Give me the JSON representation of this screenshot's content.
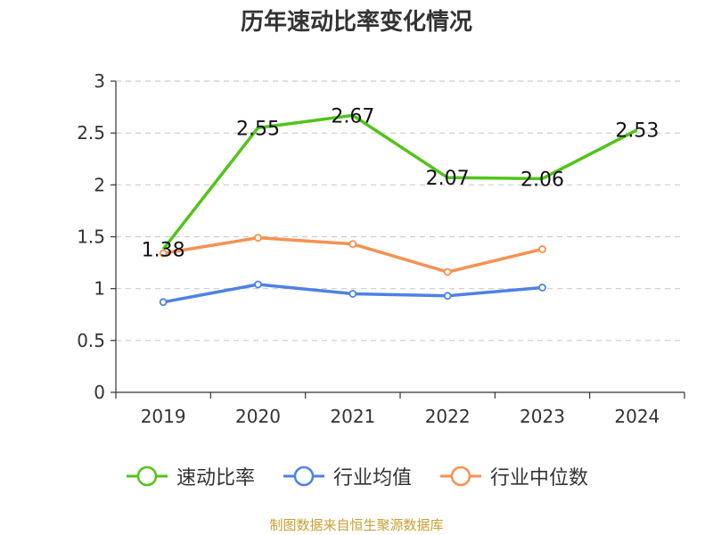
{
  "chart_data": {
    "type": "line",
    "title": "历年速动比率变化情况",
    "categories": [
      "2019",
      "2020",
      "2021",
      "2022",
      "2023",
      "2024"
    ],
    "ylim": [
      0,
      3
    ],
    "yticks": [
      0,
      0.5,
      1,
      1.5,
      2,
      2.5,
      3
    ],
    "grid": true,
    "legend_position": "bottom",
    "series": [
      {
        "name": "速动比率",
        "color": "#52c41a",
        "values": [
          1.38,
          2.55,
          2.67,
          2.07,
          2.06,
          2.53
        ],
        "show_labels": true
      },
      {
        "name": "行业均值",
        "color": "#4f81e6",
        "values": [
          0.87,
          1.04,
          0.95,
          0.93,
          1.01,
          null
        ],
        "show_labels": false
      },
      {
        "name": "行业中位数",
        "color": "#f79150",
        "values": [
          1.34,
          1.49,
          1.43,
          1.16,
          1.38,
          null
        ],
        "show_labels": false
      }
    ]
  },
  "source_note": "制图数据来自恒生聚源数据库"
}
